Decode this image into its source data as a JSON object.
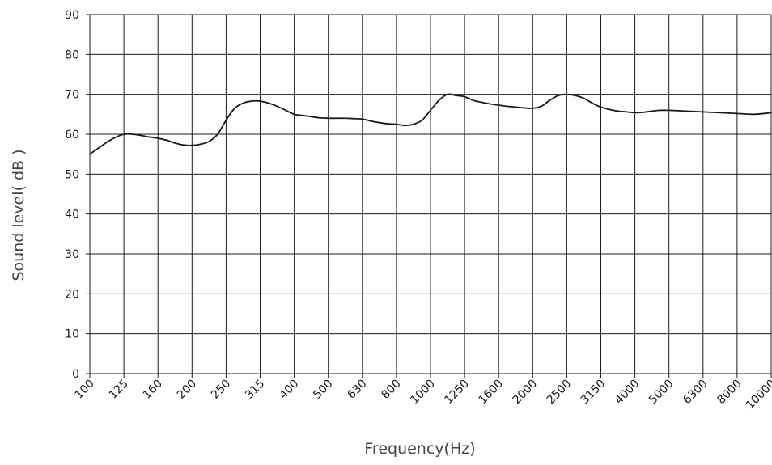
{
  "chart_data": {
    "type": "line",
    "title": "",
    "xlabel": "Frequency(Hz)",
    "ylabel": "Sound level( dB )",
    "categories": [
      "100",
      "125",
      "160",
      "200",
      "250",
      "315",
      "400",
      "500",
      "630",
      "800",
      "1000",
      "1250",
      "1600",
      "2000",
      "2500",
      "3150",
      "4000",
      "5000",
      "6300",
      "8000",
      "10000"
    ],
    "y_ticks": [
      0,
      10,
      20,
      30,
      40,
      50,
      60,
      70,
      80,
      90
    ],
    "ylim": [
      0,
      90
    ],
    "grid": true,
    "legend": "none",
    "line_color": "#1a1a1a",
    "series": [
      {
        "points": [
          [
            0,
            55
          ],
          [
            0.25,
            56.5
          ],
          [
            0.5,
            58
          ],
          [
            0.75,
            59.2
          ],
          [
            1,
            60
          ],
          [
            1.25,
            60
          ],
          [
            1.5,
            59.7
          ],
          [
            1.75,
            59.3
          ],
          [
            2,
            59
          ],
          [
            2.25,
            58.5
          ],
          [
            2.5,
            57.8
          ],
          [
            2.75,
            57.3
          ],
          [
            3,
            57.2
          ],
          [
            3.25,
            57.5
          ],
          [
            3.5,
            58.2
          ],
          [
            3.75,
            60
          ],
          [
            4,
            63.5
          ],
          [
            4.25,
            66.5
          ],
          [
            4.5,
            67.8
          ],
          [
            4.75,
            68.3
          ],
          [
            5,
            68.3
          ],
          [
            5.25,
            67.8
          ],
          [
            5.5,
            67
          ],
          [
            5.75,
            66
          ],
          [
            6,
            65
          ],
          [
            6.25,
            64.7
          ],
          [
            6.5,
            64.4
          ],
          [
            6.75,
            64.1
          ],
          [
            7,
            64
          ],
          [
            7.25,
            64
          ],
          [
            7.5,
            64
          ],
          [
            7.75,
            63.9
          ],
          [
            8,
            63.8
          ],
          [
            8.25,
            63.3
          ],
          [
            8.5,
            62.9
          ],
          [
            8.75,
            62.6
          ],
          [
            9,
            62.5
          ],
          [
            9.25,
            62.2
          ],
          [
            9.5,
            62.5
          ],
          [
            9.75,
            63.5
          ],
          [
            10,
            66
          ],
          [
            10.25,
            68.5
          ],
          [
            10.5,
            70
          ],
          [
            10.75,
            69.7
          ],
          [
            11,
            69.4
          ],
          [
            11.25,
            68.5
          ],
          [
            11.5,
            68
          ],
          [
            11.75,
            67.6
          ],
          [
            12,
            67.3
          ],
          [
            12.25,
            67
          ],
          [
            12.5,
            66.8
          ],
          [
            12.75,
            66.6
          ],
          [
            13,
            66.5
          ],
          [
            13.25,
            67
          ],
          [
            13.5,
            68.5
          ],
          [
            13.75,
            69.7
          ],
          [
            14,
            70
          ],
          [
            14.25,
            69.7
          ],
          [
            14.5,
            69
          ],
          [
            14.75,
            67.8
          ],
          [
            15,
            66.8
          ],
          [
            15.25,
            66.2
          ],
          [
            15.5,
            65.8
          ],
          [
            15.75,
            65.6
          ],
          [
            16,
            65.4
          ],
          [
            16.25,
            65.5
          ],
          [
            16.5,
            65.8
          ],
          [
            16.75,
            66
          ],
          [
            17,
            66
          ],
          [
            17.5,
            65.8
          ],
          [
            18,
            65.6
          ],
          [
            18.5,
            65.4
          ],
          [
            19,
            65.2
          ],
          [
            19.5,
            65
          ],
          [
            20,
            65.4
          ]
        ]
      }
    ]
  }
}
